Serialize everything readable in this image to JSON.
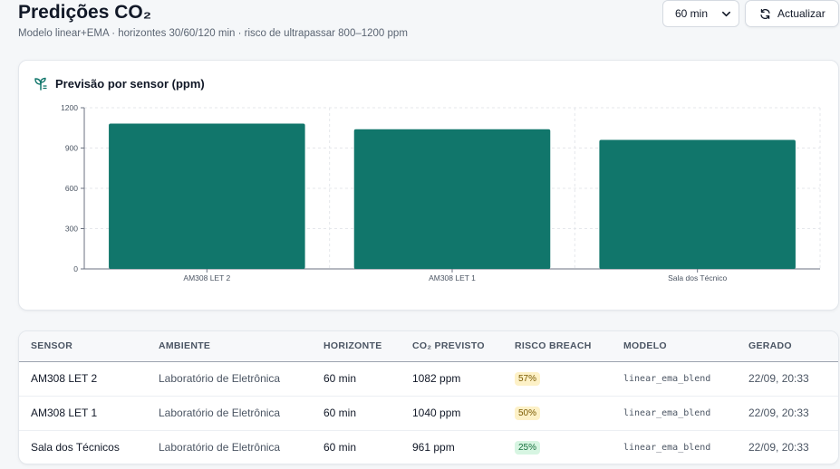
{
  "header": {
    "title": "Predições CO₂",
    "subtitle": "Modelo linear+EMA · horizontes 30/60/120 min · risco de ultrapassar 800–1200 ppm",
    "horizon_select": "60 min",
    "refresh_label": "Actualizar"
  },
  "chart_card": {
    "title": "Previsão por sensor (ppm)",
    "icon": "sprout-icon"
  },
  "chart_data": {
    "type": "bar",
    "categories": [
      "AM308 LET 2",
      "AM308 LET 1",
      "Sala dos Técnico"
    ],
    "values": [
      1082,
      1040,
      961
    ],
    "title": "Previsão por sensor (ppm)",
    "xlabel": "",
    "ylabel": "",
    "ylim": [
      0,
      1200
    ],
    "yticks": [
      0,
      300,
      600,
      900,
      1200
    ],
    "grid": true,
    "bar_color": "#11766b"
  },
  "table": {
    "headers": [
      "SENSOR",
      "AMBIENTE",
      "HORIZONTE",
      "CO₂ PREVISTO",
      "RISCO BREACH",
      "MODELO",
      "GERADO"
    ],
    "rows": [
      {
        "sensor": "AM308 LET 2",
        "ambiente": "Laboratório de Eletrônica",
        "horizonte": "60 min",
        "co2": "1082 ppm",
        "risco": "57%",
        "risco_level": "medium",
        "modelo": "linear_ema_blend",
        "gerado": "22/09, 20:33"
      },
      {
        "sensor": "AM308 LET 1",
        "ambiente": "Laboratório de Eletrônica",
        "horizonte": "60 min",
        "co2": "1040 ppm",
        "risco": "50%",
        "risco_level": "medium",
        "modelo": "linear_ema_blend",
        "gerado": "22/09, 20:33"
      },
      {
        "sensor": "Sala dos Técnicos",
        "ambiente": "Laboratório de Eletrônica",
        "horizonte": "60 min",
        "co2": "961 ppm",
        "risco": "25%",
        "risco_level": "low",
        "modelo": "linear_ema_blend",
        "gerado": "22/09, 20:33"
      }
    ]
  },
  "colors": {
    "accent": "#11766b",
    "badge_medium_bg": "#fdf1c7",
    "badge_medium_fg": "#7a5a00",
    "badge_low_bg": "#d7f5e2",
    "badge_low_fg": "#17703d"
  }
}
